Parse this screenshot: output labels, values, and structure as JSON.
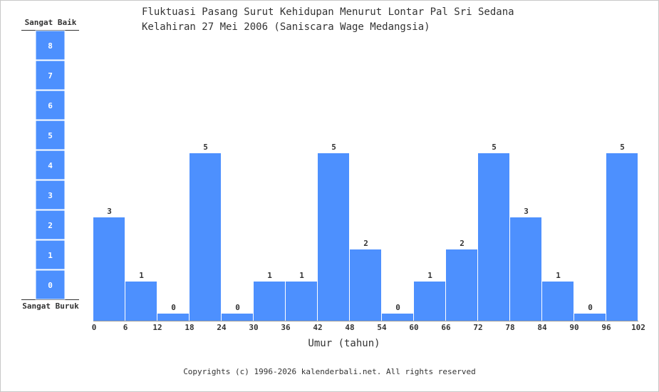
{
  "title_lines": [
    "Fluktuasi Pasang Surut Kehidupan Menurut Lontar Pal Sri Sedana",
    "Kelahiran 27 Mei 2006 (Saniscara Wage Medangsia)"
  ],
  "scale": {
    "top_label": "Sangat Baik",
    "bottom_label": "Sangat Buruk",
    "levels": [
      "0",
      "1",
      "2",
      "3",
      "4",
      "5",
      "6",
      "7",
      "8"
    ]
  },
  "chart_data": {
    "type": "bar",
    "title": "Fluktuasi Pasang Surut Kehidupan Menurut Lontar Pal Sri Sedana Kelahiran 27 Mei 2006 (Saniscara Wage Medangsia)",
    "xlabel": "Umur (tahun)",
    "ylabel": "",
    "x_ticks": [
      "0",
      "6",
      "12",
      "18",
      "24",
      "30",
      "36",
      "42",
      "48",
      "54",
      "60",
      "66",
      "72",
      "78",
      "84",
      "90",
      "96",
      "102"
    ],
    "bin_width_years": 6,
    "values": [
      3,
      1,
      0,
      5,
      0,
      1,
      1,
      5,
      2,
      0,
      1,
      2,
      5,
      3,
      1,
      0,
      5
    ],
    "ylim": [
      0,
      8
    ],
    "grid": false,
    "bar_color": "#4d90fe"
  },
  "copyright": "Copyrights (c) 1996-2026 kalenderbali.net. All rights reserved"
}
